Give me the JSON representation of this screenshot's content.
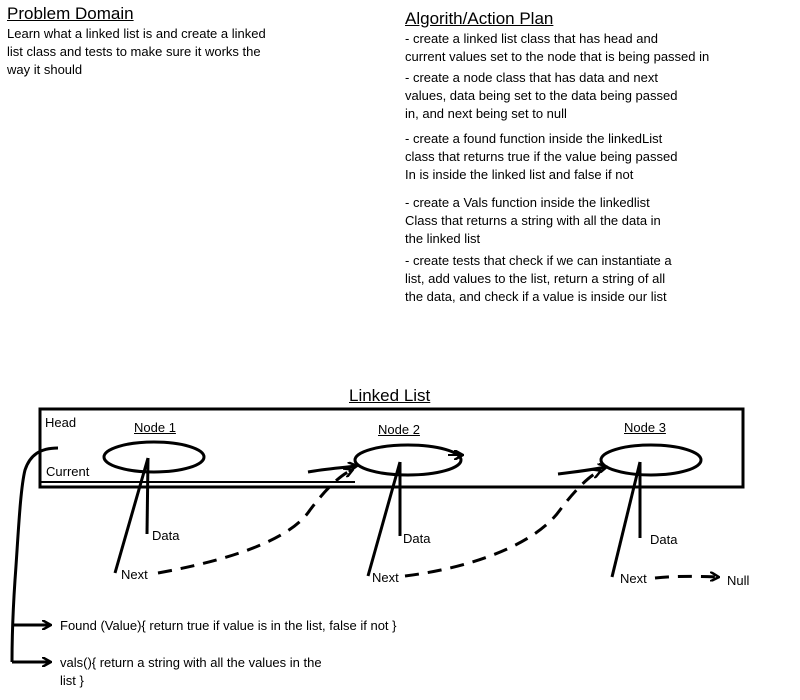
{
  "problem_domain": {
    "title": "Problem Domain",
    "text_lines": [
      "Learn what a linked list is and create a linked",
      "list class and tests to make sure it works the",
      "way it should"
    ]
  },
  "plan": {
    "title": "Algorith/Action Plan",
    "items": [
      [
        "- create a linked list class that has  head and",
        "current values set to  the node that is being passed in"
      ],
      [
        "- create a node class that has  data and next",
        "values, data being set to the data being passed",
        "in, and next being set to null"
      ],
      [
        "- create a found function inside the linkedList",
        "class that returns true if the value being passed",
        "In is inside the linked list and false if not"
      ],
      [
        "- create a Vals function inside the linkedlist",
        "Class that returns a string with all the data in",
        "the linked list"
      ],
      [
        "- create tests that check if we can instantiate a",
        "list, add values to the list, return a string of all",
        "the data, and check if a value is inside our list"
      ]
    ]
  },
  "diagram": {
    "title": "Linked List",
    "head_label": "Head",
    "current_label": "Current",
    "nodes": [
      {
        "title": "Node 1",
        "data_label": "Data",
        "next_label": "Next"
      },
      {
        "title": "Node 2",
        "data_label": "Data",
        "next_label": "Next"
      },
      {
        "title": "Node 3",
        "data_label": "Data",
        "next_label": "Next"
      }
    ],
    "null_label": "Null",
    "found_text": "Found (Value){ return true if value is in the list, false if not }",
    "vals_lines": [
      "vals(){ return a string with all the values in the",
      "list }"
    ]
  }
}
